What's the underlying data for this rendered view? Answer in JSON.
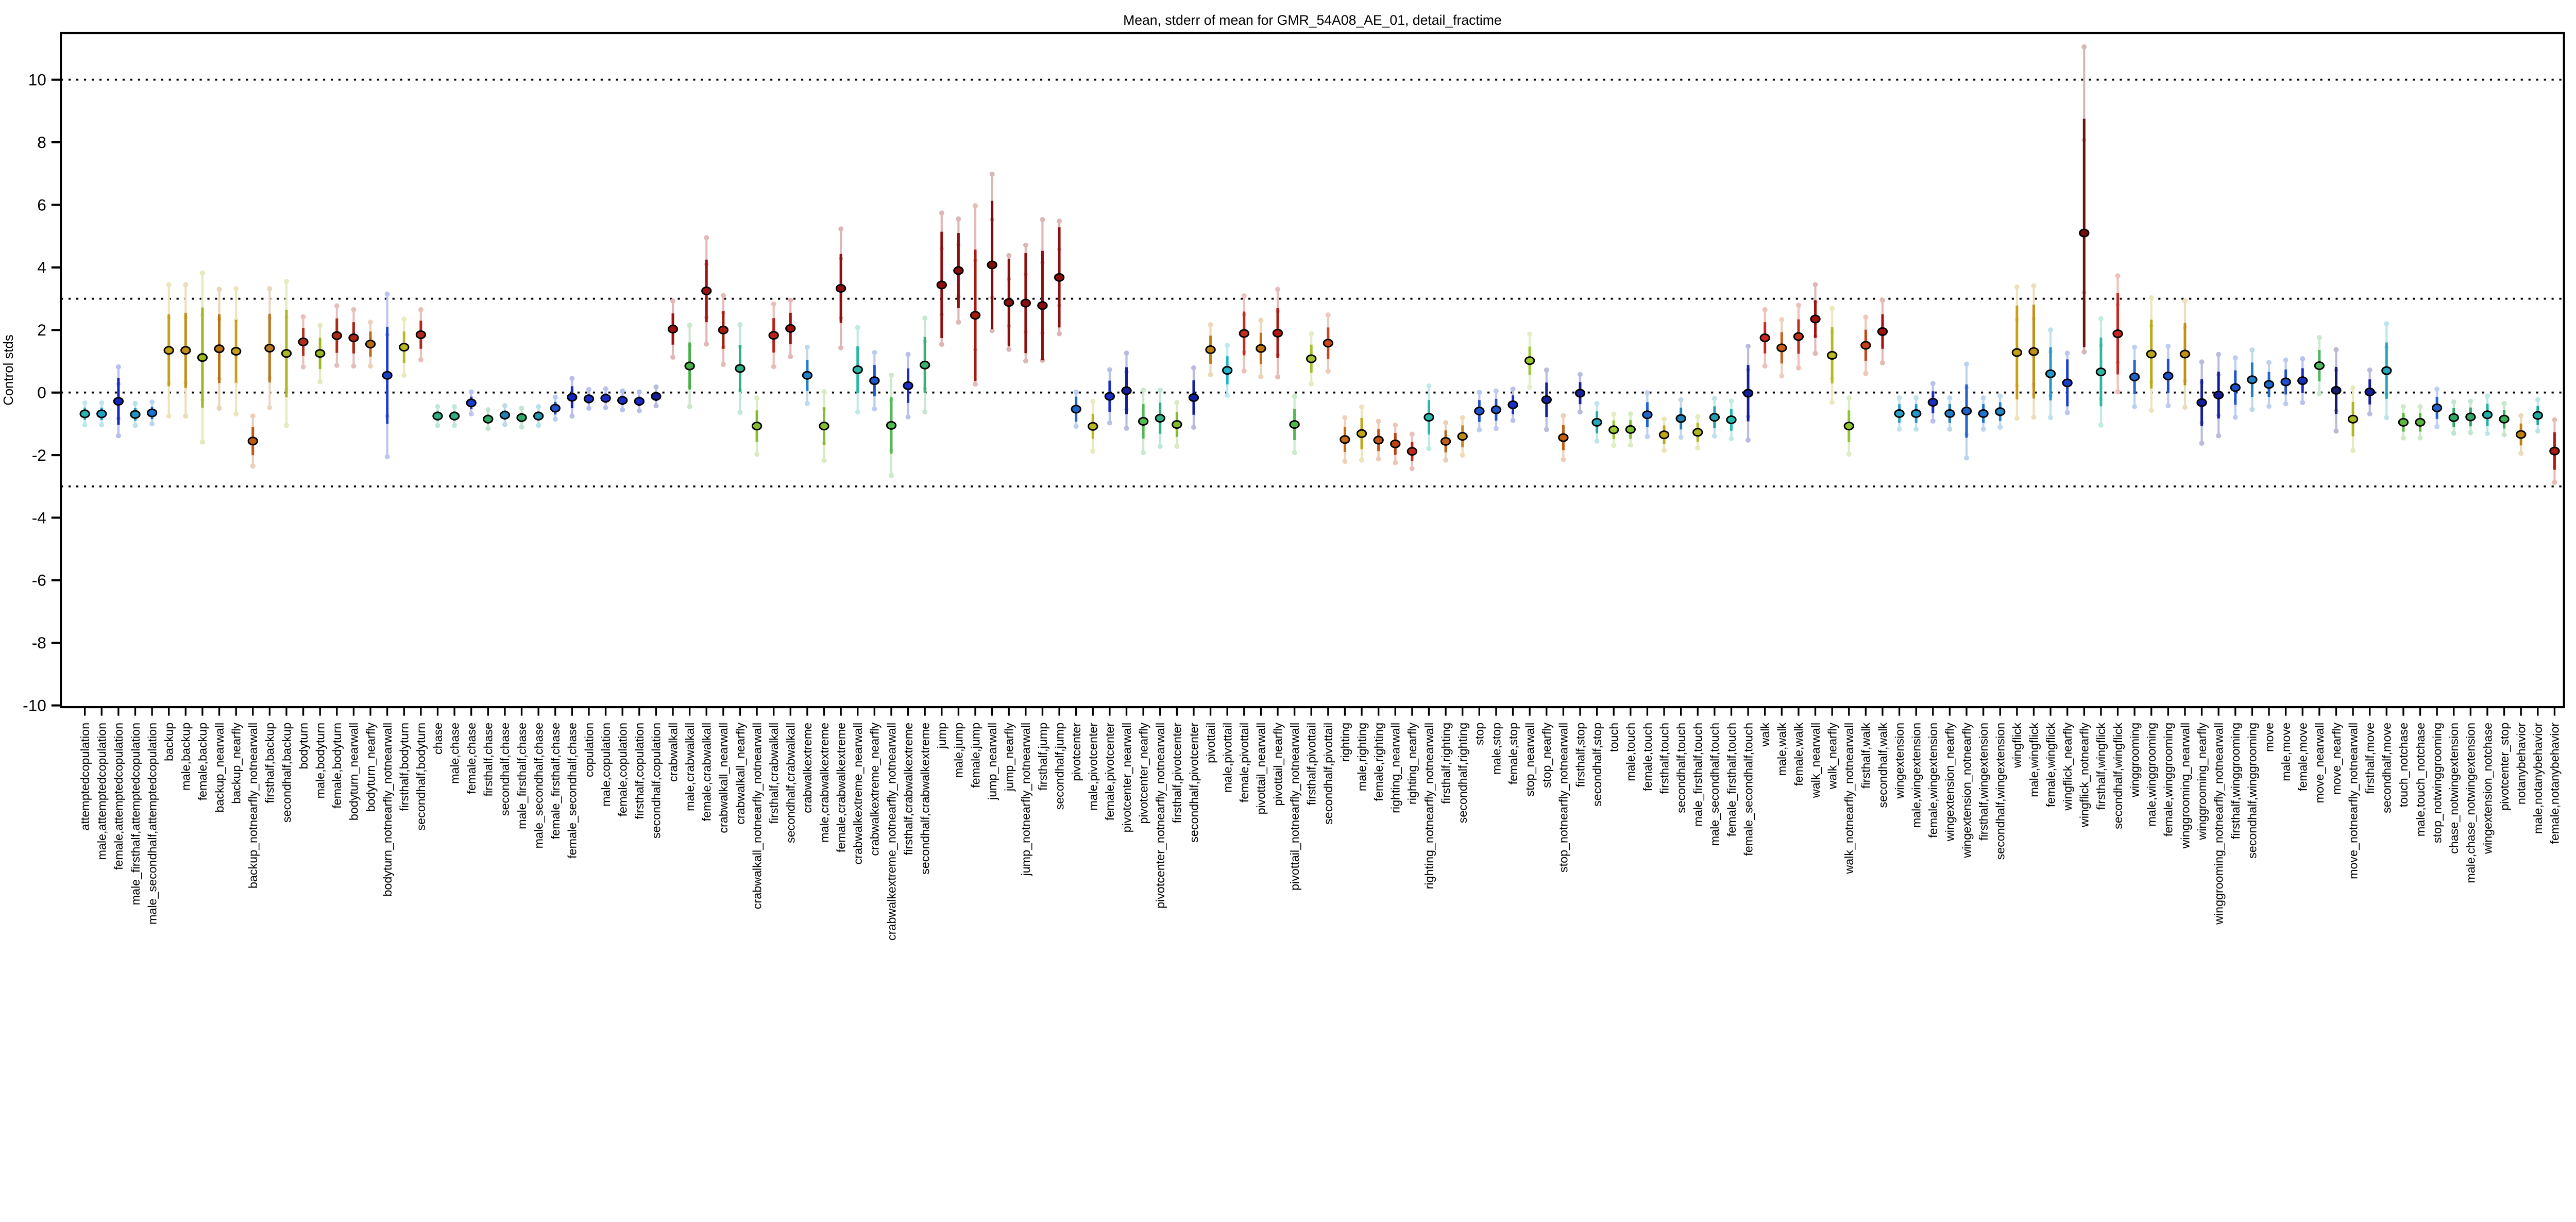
{
  "figure": {
    "background": "#ffffff",
    "axis_color": "#000000"
  },
  "chart_data": {
    "type": "scatter",
    "title": "Mean, stderr of mean for GMR_54A08_AE_01, detail_fractime",
    "ylabel": "Control stds",
    "xlabel": "",
    "ylim": [
      -10.05,
      11.5
    ],
    "yticks": [
      -10,
      -8,
      -6,
      -4,
      -2,
      0,
      2,
      4,
      6,
      8,
      10
    ],
    "gridlines_y": [
      10,
      3,
      0,
      -3
    ],
    "grid_style": "dotted",
    "legend": "none",
    "marker": "filled-ellipse-black-edge",
    "errorbar_styles": [
      "dark inner stderr bar",
      "pale outer whisker with end dots"
    ],
    "points": [
      [
        "attemptedcopulation",
        "#2ab5b5",
        -0.68,
        0.2,
        0.35,
        0.35
      ],
      [
        "male,attemptedcopulation",
        "#23a5c9",
        -0.68,
        0.2,
        0.35,
        0.35
      ],
      [
        "female,attemptedcopulation",
        "#1525c4",
        -0.28,
        0.75,
        1.1,
        1.1
      ],
      [
        "male_firsthalf,attemptedcopulation",
        "#2196c0",
        -0.7,
        0.2,
        0.35,
        0.35
      ],
      [
        "male_secondhalf,attemptedcopulation",
        "#1c74d2",
        -0.65,
        0.2,
        0.35,
        0.35
      ],
      [
        "backup",
        "#c8a018",
        1.35,
        1.15,
        2.1,
        2.1
      ],
      [
        "male,backup",
        "#c09018",
        1.35,
        1.2,
        2.1,
        2.1
      ],
      [
        "female,backup",
        "#9ab821",
        1.12,
        1.6,
        2.7,
        2.7
      ],
      [
        "backup_nearwall",
        "#b87110",
        1.4,
        1.1,
        1.9,
        1.9
      ],
      [
        "backup_nearfly",
        "#c8a018",
        1.32,
        1.0,
        2.0,
        2.0
      ],
      [
        "backup_notnearfly_notnearwall",
        "#c05810",
        -1.55,
        0.45,
        0.8,
        0.8
      ],
      [
        "firsthalf,backup",
        "#b87828",
        1.42,
        1.1,
        1.9,
        1.9
      ],
      [
        "secondhalf,backup",
        "#aab821",
        1.25,
        1.4,
        2.3,
        2.3
      ],
      [
        "bodyturn",
        "#b03020",
        1.62,
        0.45,
        0.8,
        0.8
      ],
      [
        "male,bodyturn",
        "#9ab821",
        1.25,
        0.5,
        0.9,
        0.9
      ],
      [
        "female,bodyturn",
        "#b02818",
        1.82,
        0.55,
        0.95,
        0.95
      ],
      [
        "bodyturn_nearwall",
        "#a82818",
        1.75,
        0.5,
        0.9,
        0.9
      ],
      [
        "bodyturn_nearfly",
        "#bc6a10",
        1.55,
        0.4,
        0.7,
        0.7
      ],
      [
        "bodyturn_notnearfly_notnearwall",
        "#1c3ecc",
        0.55,
        1.55,
        2.6,
        2.6
      ],
      [
        "firsthalf,bodyturn",
        "#b8b821",
        1.45,
        0.5,
        0.9,
        0.9
      ],
      [
        "secondhalf,bodyturn",
        "#b02818",
        1.85,
        0.45,
        0.8,
        0.8
      ],
      [
        "chase",
        "#2fae84",
        -0.75,
        0.15,
        0.3,
        0.3
      ],
      [
        "male,chase",
        "#2fae84",
        -0.75,
        0.15,
        0.3,
        0.3
      ],
      [
        "female,chase",
        "#1c3ecc",
        -0.33,
        0.2,
        0.35,
        0.35
      ],
      [
        "firsthalf,chase",
        "#31a866",
        -0.85,
        0.15,
        0.3,
        0.3
      ],
      [
        "secondhalf,chase",
        "#2380b8",
        -0.72,
        0.15,
        0.3,
        0.3
      ],
      [
        "male_firsthalf,chase",
        "#31a866",
        -0.8,
        0.15,
        0.3,
        0.3
      ],
      [
        "male_secondhalf,chase",
        "#2396b8",
        -0.75,
        0.15,
        0.3,
        0.3
      ],
      [
        "female_firsthalf,chase",
        "#2153cc",
        -0.5,
        0.2,
        0.35,
        0.35
      ],
      [
        "female_secondhalf,chase",
        "#1525c4",
        -0.15,
        0.35,
        0.6,
        0.6
      ],
      [
        "copulation",
        "#1a2ec4",
        -0.2,
        0.15,
        0.3,
        0.3
      ],
      [
        "male,copulation",
        "#1a2ec4",
        -0.18,
        0.15,
        0.3,
        0.3
      ],
      [
        "female,copulation",
        "#1a2ec4",
        -0.25,
        0.15,
        0.3,
        0.3
      ],
      [
        "firsthalf,copulation",
        "#1a2ec4",
        -0.28,
        0.15,
        0.3,
        0.3
      ],
      [
        "secondhalf,copulation",
        "#151f99",
        -0.12,
        0.15,
        0.3,
        0.3
      ],
      [
        "crabwalkall",
        "#a01010",
        2.03,
        0.5,
        0.9,
        0.9
      ],
      [
        "male,crabwalkall",
        "#47b147",
        0.85,
        0.75,
        1.3,
        1.3
      ],
      [
        "female,crabwalkall",
        "#a01010",
        3.25,
        1.0,
        1.7,
        1.7
      ],
      [
        "crabwalkall_nearwall",
        "#a81c10",
        2.0,
        0.6,
        1.1,
        1.1
      ],
      [
        "crabwalkall_nearfly",
        "#2fae84",
        0.77,
        0.75,
        1.4,
        1.4
      ],
      [
        "crabwalkall_notnearfly_notnearwall",
        "#84bd32",
        -1.07,
        0.5,
        0.9,
        0.9
      ],
      [
        "firsthalf,crabwalkall",
        "#b82218",
        1.83,
        0.55,
        1.0,
        1.0
      ],
      [
        "secondhalf,crabwalkall",
        "#a01010",
        2.05,
        0.5,
        0.9,
        0.9
      ],
      [
        "crabwalkextreme",
        "#2380c8",
        0.55,
        0.5,
        0.9,
        0.9
      ],
      [
        "male,crabwalkextreme",
        "#84bd32",
        -1.07,
        0.6,
        1.1,
        1.1
      ],
      [
        "female,crabwalkextreme",
        "#8c1010",
        3.33,
        1.1,
        1.9,
        1.9
      ],
      [
        "crabwalkextreme_nearwall",
        "#2ab5a5",
        0.73,
        0.75,
        1.35,
        1.35
      ],
      [
        "crabwalkextreme_nearfly",
        "#1c54cc",
        0.38,
        0.5,
        0.9,
        0.9
      ],
      [
        "crabwalkextreme_notnearfly_notnearwall",
        "#52b852",
        -1.05,
        0.9,
        1.6,
        1.6
      ],
      [
        "firsthalf,crabwalkextreme",
        "#1a2ec4",
        0.22,
        0.55,
        1.0,
        1.0
      ],
      [
        "secondhalf,crabwalkextreme",
        "#3cb06e",
        0.88,
        0.9,
        1.5,
        1.5
      ],
      [
        "jump",
        "#8c1010",
        3.44,
        1.7,
        2.3,
        1.9
      ],
      [
        "male,jump",
        "#8c1010",
        3.9,
        1.2,
        1.65,
        1.65
      ],
      [
        "female,jump",
        "#a81c10",
        2.47,
        2.1,
        3.5,
        2.2
      ],
      [
        "jump_nearwall",
        "#7d0f0f",
        4.08,
        2.05,
        2.9,
        2.1
      ],
      [
        "jump_nearfly",
        "#8c1010",
        2.88,
        1.4,
        1.5,
        1.5
      ],
      [
        "jump_notnearfly_notnearwall",
        "#8c1010",
        2.86,
        1.6,
        1.85,
        1.85
      ],
      [
        "firsthalf,jump",
        "#8c1010",
        2.78,
        1.75,
        2.75,
        1.75
      ],
      [
        "secondhalf,jump",
        "#8c1010",
        3.68,
        1.6,
        1.8,
        1.8
      ],
      [
        "pivotcenter",
        "#2166cc",
        -0.53,
        0.4,
        0.55,
        0.55
      ],
      [
        "male,pivotcenter",
        "#b8b821",
        -1.08,
        0.4,
        0.8,
        0.8
      ],
      [
        "female,pivotcenter",
        "#1a2ec4",
        -0.12,
        0.5,
        0.85,
        0.85
      ],
      [
        "pivotcenter_nearwall",
        "#151f99",
        0.06,
        0.75,
        1.2,
        1.2
      ],
      [
        "pivotcenter_nearfly",
        "#52b852",
        -0.92,
        0.55,
        1.0,
        1.0
      ],
      [
        "pivotcenter_notnearfly_notnearwall",
        "#2fae84",
        -0.82,
        0.5,
        0.9,
        0.9
      ],
      [
        "firsthalf,pivotcenter",
        "#84bd32",
        -1.02,
        0.4,
        0.7,
        0.7
      ],
      [
        "secondhalf,pivotcenter",
        "#151f99",
        -0.16,
        0.55,
        0.95,
        0.95
      ],
      [
        "pivottail",
        "#c08010",
        1.37,
        0.45,
        0.8,
        0.8
      ],
      [
        "male,pivottail",
        "#23b5c9",
        0.71,
        0.45,
        0.8,
        0.8
      ],
      [
        "female,pivottail",
        "#c03020",
        1.89,
        0.7,
        1.2,
        1.2
      ],
      [
        "pivottail_nearwall",
        "#c07010",
        1.41,
        0.5,
        0.9,
        0.9
      ],
      [
        "pivottail_nearfly",
        "#b01810",
        1.9,
        0.8,
        1.4,
        1.4
      ],
      [
        "pivottail_notnearfly_notnearwall",
        "#52b852",
        -1.02,
        0.5,
        0.9,
        0.9
      ],
      [
        "firsthalf,pivottail",
        "#a4c132",
        1.08,
        0.45,
        0.8,
        0.8
      ],
      [
        "secondhalf,pivottail",
        "#c8471c",
        1.58,
        0.5,
        0.9,
        0.9
      ],
      [
        "righting",
        "#c86a10",
        -1.5,
        0.4,
        0.7,
        0.7
      ],
      [
        "male,righting",
        "#c2a618",
        -1.31,
        0.5,
        0.85,
        0.85
      ],
      [
        "female,righting",
        "#c65317",
        -1.52,
        0.35,
        0.6,
        0.6
      ],
      [
        "righting_nearwall",
        "#bc4313",
        -1.64,
        0.35,
        0.6,
        0.6
      ],
      [
        "righting_nearfly",
        "#c22818",
        -1.88,
        0.3,
        0.55,
        0.55
      ],
      [
        "righting_notnearfly_notnearwall",
        "#28b8ae",
        -0.79,
        0.55,
        1.0,
        1.0
      ],
      [
        "firsthalf,righting",
        "#c06018",
        -1.56,
        0.35,
        0.6,
        0.6
      ],
      [
        "secondhalf,righting",
        "#c08b18",
        -1.4,
        0.35,
        0.6,
        0.6
      ],
      [
        "stop",
        "#2153cc",
        -0.59,
        0.35,
        0.6,
        0.6
      ],
      [
        "male,stop",
        "#2153cc",
        -0.55,
        0.35,
        0.6,
        0.6
      ],
      [
        "female,stop",
        "#1a2ec4",
        -0.39,
        0.3,
        0.5,
        0.5
      ],
      [
        "stop_nearwall",
        "#9ac832",
        1.02,
        0.45,
        0.85,
        0.85
      ],
      [
        "stop_nearfly",
        "#151f99",
        -0.23,
        0.55,
        0.95,
        0.95
      ],
      [
        "stop_notnearfly_notnearwall",
        "#c06010",
        -1.44,
        0.4,
        0.7,
        0.7
      ],
      [
        "firsthalf,stop",
        "#151f99",
        -0.02,
        0.35,
        0.6,
        0.6
      ],
      [
        "secondhalf,stop",
        "#23a8b8",
        -0.95,
        0.35,
        0.6,
        0.6
      ],
      [
        "touch",
        "#9ac832",
        -1.19,
        0.3,
        0.5,
        0.5
      ],
      [
        "male,touch",
        "#7cc132",
        -1.18,
        0.3,
        0.5,
        0.5
      ],
      [
        "female,touch",
        "#2166cc",
        -0.71,
        0.4,
        0.7,
        0.7
      ],
      [
        "firsthalf,touch",
        "#c2a618",
        -1.35,
        0.3,
        0.5,
        0.5
      ],
      [
        "secondhalf,touch",
        "#2380b8",
        -0.83,
        0.35,
        0.6,
        0.6
      ],
      [
        "male_firsthalf,touch",
        "#b0b821",
        -1.27,
        0.3,
        0.5,
        0.5
      ],
      [
        "male_secondhalf,touch",
        "#23a0b0",
        -0.79,
        0.35,
        0.6,
        0.6
      ],
      [
        "female_firsthalf,touch",
        "#28b8ae",
        -0.87,
        0.35,
        0.6,
        0.6
      ],
      [
        "female_secondhalf,touch",
        "#151f99",
        -0.02,
        0.9,
        1.5,
        1.5
      ],
      [
        "walk",
        "#c82820",
        1.75,
        0.5,
        0.9,
        0.9
      ],
      [
        "male,walk",
        "#c86018",
        1.43,
        0.5,
        0.9,
        0.9
      ],
      [
        "female,walk",
        "#c23018",
        1.79,
        0.55,
        1.0,
        1.0
      ],
      [
        "walk_nearwall",
        "#a01010",
        2.35,
        0.6,
        1.1,
        1.1
      ],
      [
        "walk_nearfly",
        "#b8b821",
        1.19,
        0.9,
        1.5,
        1.5
      ],
      [
        "walk_notnearfly_notnearwall",
        "#8cc432",
        -1.07,
        0.5,
        0.9,
        0.9
      ],
      [
        "firsthalf,walk",
        "#c64317",
        1.51,
        0.5,
        0.9,
        0.9
      ],
      [
        "secondhalf,walk",
        "#a81010",
        1.95,
        0.55,
        1.0,
        1.0
      ],
      [
        "wingextension",
        "#2da0c8",
        -0.67,
        0.3,
        0.5,
        0.5
      ],
      [
        "male,wingextension",
        "#2596c8",
        -0.67,
        0.3,
        0.5,
        0.5
      ],
      [
        "female,wingextension",
        "#1a2ec4",
        -0.31,
        0.35,
        0.6,
        0.6
      ],
      [
        "wingextension_nearfly",
        "#2380c8",
        -0.67,
        0.3,
        0.5,
        0.5
      ],
      [
        "wingextension_notnearfly",
        "#1e62cc",
        -0.59,
        0.85,
        1.5,
        1.5
      ],
      [
        "firsthalf,wingextension",
        "#2072cc",
        -0.67,
        0.3,
        0.5,
        0.5
      ],
      [
        "secondhalf,wingextension",
        "#2586c8",
        -0.61,
        0.3,
        0.5,
        0.5
      ],
      [
        "wingflick",
        "#c8a018",
        1.28,
        1.5,
        2.1,
        2.1
      ],
      [
        "male,wingflick",
        "#c09018",
        1.31,
        1.5,
        2.1,
        2.1
      ],
      [
        "female,wingflick",
        "#2596c8",
        0.6,
        0.85,
        1.4,
        1.4
      ],
      [
        "wingflick_nearfly",
        "#1c3ecc",
        0.31,
        0.75,
        0.95,
        0.95
      ],
      [
        "wingflick_notnearfly",
        "#701010",
        5.1,
        3.65,
        5.95,
        3.8
      ],
      [
        "firsthalf,wingflick",
        "#2fb89e",
        0.66,
        1.1,
        1.7,
        1.7
      ],
      [
        "secondhalf,wingflick",
        "#c82820",
        1.88,
        1.3,
        1.85,
        1.85
      ],
      [
        "winggrooming",
        "#2166cc",
        0.5,
        0.55,
        0.95,
        0.95
      ],
      [
        "male,winggrooming",
        "#b8a818",
        1.23,
        1.1,
        1.8,
        1.8
      ],
      [
        "female,winggrooming",
        "#1e50cc",
        0.53,
        0.55,
        0.95,
        0.95
      ],
      [
        "winggrooming_nearwall",
        "#c09018",
        1.23,
        1.0,
        1.7,
        1.7
      ],
      [
        "winggrooming_nearfly",
        "#151f99",
        -0.32,
        0.75,
        1.3,
        1.3
      ],
      [
        "winggrooming_notnearfly_notnearwall",
        "#18189e",
        -0.08,
        0.75,
        1.3,
        1.3
      ],
      [
        "firsthalf,winggrooming",
        "#1e50cc",
        0.16,
        0.55,
        0.95,
        0.95
      ],
      [
        "secondhalf,winggrooming",
        "#2380c8",
        0.41,
        0.55,
        0.95,
        0.95
      ],
      [
        "move",
        "#2166cc",
        0.26,
        0.4,
        0.7,
        0.7
      ],
      [
        "male,move",
        "#2153cc",
        0.34,
        0.4,
        0.7,
        0.7
      ],
      [
        "female,move",
        "#1a2ec4",
        0.38,
        0.4,
        0.7,
        0.7
      ],
      [
        "move_nearwall",
        "#4cb85c",
        0.86,
        0.5,
        0.9,
        0.9
      ],
      [
        "move_nearfly",
        "#1a1a6e",
        0.07,
        0.75,
        1.3,
        1.3
      ],
      [
        "move_notnearfly_notnearwall",
        "#aab821",
        -0.85,
        0.55,
        1.0,
        1.0
      ],
      [
        "firsthalf,move",
        "#151f99",
        0.02,
        0.4,
        0.7,
        0.7
      ],
      [
        "secondhalf,move",
        "#23a8b8",
        0.7,
        0.9,
        1.5,
        1.5
      ],
      [
        "touch_notchase",
        "#5cb83c",
        -0.95,
        0.3,
        0.5,
        0.5
      ],
      [
        "male,touch_notchase",
        "#5cb83c",
        -0.95,
        0.3,
        0.5,
        0.5
      ],
      [
        "stop_notwinggrooming",
        "#1e62cc",
        -0.49,
        0.35,
        0.6,
        0.6
      ],
      [
        "chase_notwingextension",
        "#31a866",
        -0.8,
        0.3,
        0.5,
        0.5
      ],
      [
        "male,chase_notwingextension",
        "#31a866",
        -0.78,
        0.3,
        0.5,
        0.5
      ],
      [
        "wingextension_notchase",
        "#23b0a8",
        -0.71,
        0.35,
        0.6,
        0.6
      ],
      [
        "pivotcenter_stop",
        "#3cb054",
        -0.85,
        0.3,
        0.5,
        0.5
      ],
      [
        "notanybehavior",
        "#c08010",
        -1.34,
        0.35,
        0.6,
        0.6
      ],
      [
        "male,notanybehavior",
        "#23a8a0",
        -0.73,
        0.3,
        0.5,
        0.5
      ],
      [
        "female,notanybehavior",
        "#b01810",
        -1.87,
        0.6,
        1.0,
        1.0
      ]
    ]
  }
}
